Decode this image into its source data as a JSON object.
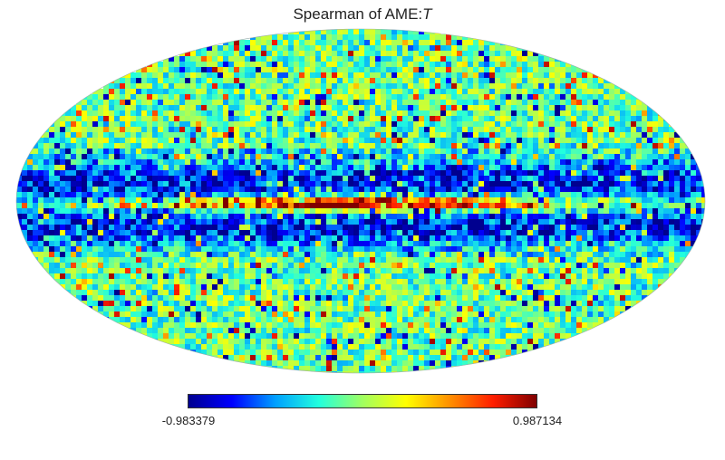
{
  "title": {
    "prefix": "Spearman of AME:",
    "variable": "T"
  },
  "map": {
    "projection": "mollweide",
    "quantity": "Spearman correlation",
    "colormap": "jet",
    "colormap_stops": [
      "#00008f",
      "#0000ff",
      "#00a0ff",
      "#22ffdd",
      "#a0ff60",
      "#ffff00",
      "#ff9000",
      "#ff1e00",
      "#800000"
    ],
    "galactic_plane_band": "strong positive correlation (red) along the center, bordered by negative (blue) regions"
  },
  "colorbar": {
    "min_label": "-0.983379",
    "max_label": "0.987134",
    "min_value": -0.983379,
    "max_value": 0.987134
  }
}
